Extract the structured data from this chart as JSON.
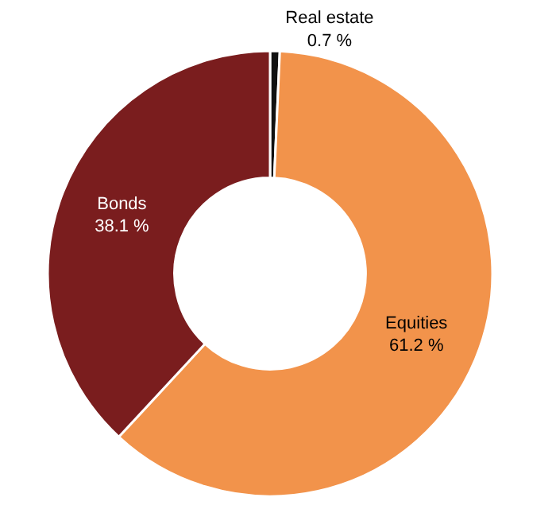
{
  "chart_data": {
    "type": "donut",
    "categories": [
      "Real estate",
      "Equities",
      "Bonds"
    ],
    "values": [
      0.7,
      61.2,
      38.1
    ],
    "value_labels": [
      "0.7 %",
      "61.2 %",
      "38.1 %"
    ],
    "colors": [
      "#111111",
      "#f2934b",
      "#7a1d1e"
    ],
    "legend": false
  }
}
